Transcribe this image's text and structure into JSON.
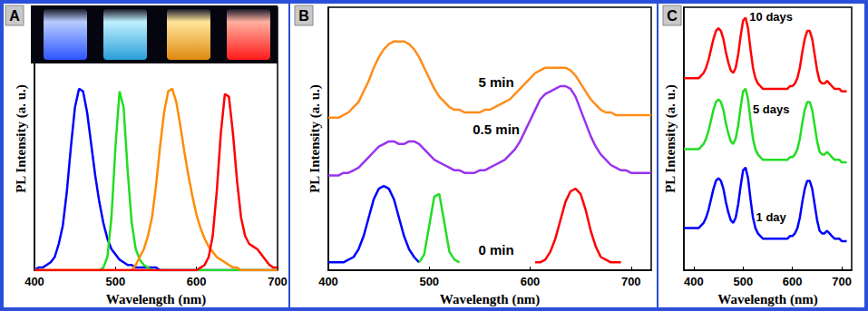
{
  "chart_data": [
    {
      "type": "line",
      "title": "A",
      "x_label": "Wavelength (nm)",
      "y_label": "PL Intensity (a. u.)",
      "x": [
        400,
        405,
        410,
        415,
        420,
        425,
        430,
        435,
        440,
        445,
        450,
        455,
        460,
        465,
        470,
        475,
        480,
        485,
        490,
        495,
        500,
        505,
        510,
        515,
        520,
        525,
        530,
        535,
        540,
        545,
        550,
        555,
        560,
        565,
        570,
        575,
        580,
        585,
        590,
        595,
        600,
        605,
        610,
        615,
        620,
        625,
        630,
        635,
        640,
        645,
        650,
        655,
        660,
        665,
        670,
        675,
        680,
        685,
        690,
        695,
        700
      ],
      "series": [
        {
          "color": "#0000ff",
          "values": [
            0,
            0.01,
            0.01,
            0.02,
            0.03,
            0.05,
            0.1,
            0.17,
            0.3,
            0.47,
            0.62,
            0.69,
            0.68,
            0.6,
            0.48,
            0.36,
            0.26,
            0.18,
            0.12,
            0.08,
            0.06,
            0.04,
            0.03,
            0.02,
            0.02,
            0.01,
            0.01,
            0.01,
            0.01,
            0.01,
            0.01,
            0,
            0,
            0,
            0,
            0,
            0,
            0,
            0,
            0,
            0,
            0,
            0,
            0,
            0,
            0,
            0,
            0,
            0,
            0,
            0,
            0,
            0,
            0,
            0,
            0,
            0,
            0,
            0,
            0,
            0
          ]
        },
        {
          "color": "#22dd22",
          "values": [
            0,
            0,
            0,
            0,
            0,
            0,
            0,
            0,
            0,
            0,
            0,
            0,
            0,
            0,
            0,
            0,
            0,
            0.01,
            0.05,
            0.2,
            0.47,
            0.68,
            0.62,
            0.38,
            0.18,
            0.08,
            0.04,
            0.02,
            0.01,
            0,
            0,
            0,
            0,
            0,
            0,
            0,
            0,
            0,
            0,
            0,
            0,
            0,
            0,
            0,
            0,
            0,
            0,
            0,
            0,
            0,
            0,
            0,
            0,
            0,
            0,
            0,
            0,
            0,
            0,
            0,
            0
          ]
        },
        {
          "color": "#ff8c00",
          "values": [
            0,
            0,
            0,
            0,
            0,
            0,
            0,
            0,
            0,
            0,
            0,
            0,
            0,
            0,
            0,
            0,
            0,
            0,
            0,
            0,
            0,
            0,
            0,
            0,
            0,
            0.02,
            0.05,
            0.08,
            0.13,
            0.2,
            0.32,
            0.47,
            0.6,
            0.68,
            0.69,
            0.64,
            0.55,
            0.45,
            0.36,
            0.28,
            0.21,
            0.16,
            0.12,
            0.09,
            0.07,
            0.05,
            0.04,
            0.03,
            0.02,
            0.01,
            0.01,
            0,
            0,
            0,
            0,
            0,
            0,
            0,
            0,
            0,
            0
          ]
        },
        {
          "color": "#ff0000",
          "values": [
            0,
            0,
            0,
            0,
            0,
            0,
            0,
            0,
            0,
            0,
            0,
            0,
            0,
            0,
            0,
            0,
            0,
            0,
            0,
            0,
            0,
            0,
            0,
            0,
            0,
            0,
            0,
            0,
            0,
            0,
            0,
            0,
            0,
            0,
            0,
            0,
            0,
            0,
            0,
            0,
            0,
            0.01,
            0.02,
            0.05,
            0.13,
            0.3,
            0.52,
            0.67,
            0.66,
            0.52,
            0.34,
            0.2,
            0.13,
            0.1,
            0.09,
            0.08,
            0.06,
            0.04,
            0.02,
            0.01,
            0.01
          ]
        }
      ],
      "xlim": [
        400,
        700
      ],
      "xticks": [
        400,
        500,
        600,
        700
      ],
      "ylim": [
        0,
        1
      ],
      "tick_labels": "x",
      "grid": false
    },
    {
      "type": "line",
      "title": "B",
      "x_label": "Wavelength (nm)",
      "y_label": "PL Intensity (a. u.)",
      "x": [
        400,
        405,
        410,
        415,
        420,
        425,
        430,
        435,
        440,
        445,
        450,
        455,
        460,
        465,
        470,
        475,
        480,
        485,
        490,
        495,
        500,
        505,
        510,
        515,
        520,
        525,
        530,
        535,
        540,
        545,
        550,
        555,
        560,
        565,
        570,
        575,
        580,
        585,
        590,
        595,
        600,
        605,
        610,
        615,
        620,
        625,
        630,
        635,
        640,
        645,
        650,
        655,
        660,
        665,
        670,
        675,
        680,
        685,
        690,
        695,
        700,
        705,
        710,
        715,
        720
      ],
      "series": [
        {
          "name": "5 min",
          "color": "#ff8c1a",
          "values": [
            0.58,
            0.58,
            0.58,
            0.59,
            0.6,
            0.62,
            0.64,
            0.68,
            0.72,
            0.77,
            0.81,
            0.84,
            0.86,
            0.87,
            0.87,
            0.87,
            0.86,
            0.84,
            0.81,
            0.77,
            0.73,
            0.69,
            0.66,
            0.64,
            0.62,
            0.61,
            0.61,
            0.6,
            0.6,
            0.6,
            0.6,
            0.61,
            0.61,
            0.62,
            0.63,
            0.64,
            0.65,
            0.67,
            0.69,
            0.71,
            0.73,
            0.75,
            0.76,
            0.77,
            0.77,
            0.77,
            0.77,
            0.77,
            0.76,
            0.74,
            0.71,
            0.68,
            0.65,
            0.63,
            0.61,
            0.6,
            0.6,
            0.59,
            0.59,
            0.59,
            0.59,
            0.59,
            0.59,
            0.59,
            0.59
          ]
        },
        {
          "name": "0.5 min",
          "color": "#9933ee",
          "values": [
            0.36,
            0.36,
            0.36,
            0.37,
            0.37,
            0.38,
            0.39,
            0.41,
            0.43,
            0.45,
            0.47,
            0.48,
            0.49,
            0.49,
            0.48,
            0.48,
            0.49,
            0.49,
            0.48,
            0.46,
            0.44,
            0.42,
            0.41,
            0.4,
            0.39,
            0.38,
            0.38,
            0.37,
            0.37,
            0.37,
            0.38,
            0.38,
            0.39,
            0.4,
            0.41,
            0.42,
            0.44,
            0.46,
            0.49,
            0.53,
            0.57,
            0.61,
            0.65,
            0.67,
            0.68,
            0.69,
            0.7,
            0.7,
            0.69,
            0.66,
            0.61,
            0.56,
            0.51,
            0.47,
            0.44,
            0.42,
            0.4,
            0.39,
            0.38,
            0.38,
            0.37,
            0.37,
            0.37,
            0.37,
            0.37
          ]
        },
        {
          "name": "0 min",
          "color": "#0000ff",
          "values": [
            0.03,
            0.03,
            0.03,
            0.03,
            0.04,
            0.05,
            0.08,
            0.13,
            0.2,
            0.27,
            0.31,
            0.32,
            0.31,
            0.27,
            0.2,
            0.13,
            0.08,
            0.05,
            0.03,
            null,
            null,
            null,
            null,
            null,
            null,
            null,
            null,
            null,
            null,
            null,
            null,
            null,
            null,
            null,
            null,
            null,
            null,
            null,
            null,
            null,
            null,
            null,
            null,
            null,
            null,
            null,
            null,
            null,
            null,
            null,
            null,
            null,
            null,
            null,
            null,
            null,
            null,
            null,
            null,
            null,
            null,
            null,
            null,
            null,
            null
          ]
        },
        {
          "color": "#22dd22",
          "values": [
            null,
            null,
            null,
            null,
            null,
            null,
            null,
            null,
            null,
            null,
            null,
            null,
            null,
            null,
            null,
            null,
            null,
            null,
            0.03,
            0.06,
            0.17,
            0.28,
            0.29,
            0.18,
            0.07,
            0.04,
            0.03,
            null,
            null,
            null,
            null,
            null,
            null,
            null,
            null,
            null,
            null,
            null,
            null,
            null,
            null,
            null,
            null,
            null,
            null,
            null,
            null,
            null,
            null,
            null,
            null,
            null,
            null,
            null,
            null,
            null,
            null,
            null,
            null,
            null,
            null,
            null,
            null,
            null,
            null
          ]
        },
        {
          "color": "#ff0000",
          "values": [
            null,
            null,
            null,
            null,
            null,
            null,
            null,
            null,
            null,
            null,
            null,
            null,
            null,
            null,
            null,
            null,
            null,
            null,
            null,
            null,
            null,
            null,
            null,
            null,
            null,
            null,
            null,
            null,
            null,
            null,
            null,
            null,
            null,
            null,
            null,
            null,
            null,
            null,
            null,
            null,
            null,
            0.03,
            0.03,
            0.04,
            0.07,
            0.12,
            0.19,
            0.26,
            0.3,
            0.31,
            0.29,
            0.23,
            0.15,
            0.09,
            0.05,
            0.04,
            0.03,
            0.03,
            0.03,
            null,
            null,
            null,
            null,
            null,
            null
          ]
        }
      ],
      "xlim": [
        400,
        720
      ],
      "xticks": [
        400,
        500,
        600,
        700
      ],
      "ylim": [
        0,
        1
      ],
      "tick_labels": "x",
      "grid": false
    },
    {
      "type": "line",
      "title": "C",
      "x_label": "Wavelength (nm)",
      "y_label": "PL Intensity (a. u.)",
      "x": [
        380,
        385,
        390,
        395,
        400,
        405,
        410,
        415,
        420,
        425,
        430,
        435,
        440,
        445,
        450,
        455,
        460,
        465,
        470,
        475,
        480,
        485,
        490,
        495,
        500,
        505,
        510,
        515,
        520,
        525,
        530,
        535,
        540,
        545,
        550,
        555,
        560,
        565,
        570,
        575,
        580,
        585,
        590,
        595,
        600,
        605,
        610,
        615,
        620,
        625,
        630,
        635,
        640,
        645,
        650,
        655,
        660,
        665,
        670,
        675,
        680,
        685,
        690,
        695,
        700,
        705,
        710
      ],
      "series": [
        {
          "name": "10 days",
          "color": "#ff0000",
          "values": [
            0.73,
            0.73,
            0.73,
            0.73,
            0.73,
            0.73,
            0.73,
            0.74,
            0.75,
            0.77,
            0.8,
            0.84,
            0.88,
            0.91,
            0.92,
            0.91,
            0.88,
            0.83,
            0.79,
            0.76,
            0.75,
            0.77,
            0.82,
            0.89,
            0.95,
            0.96,
            0.92,
            0.84,
            0.77,
            0.73,
            0.71,
            0.7,
            0.69,
            0.69,
            0.69,
            0.69,
            0.69,
            0.69,
            0.69,
            0.69,
            0.69,
            0.69,
            0.69,
            0.7,
            0.7,
            0.71,
            0.73,
            0.77,
            0.83,
            0.88,
            0.91,
            0.91,
            0.88,
            0.82,
            0.76,
            0.72,
            0.71,
            0.71,
            0.72,
            0.71,
            0.7,
            0.69,
            0.69,
            0.69,
            0.68,
            0.68,
            0.68
          ]
        },
        {
          "name": "5 days",
          "color": "#22dd22",
          "values": [
            0.46,
            0.46,
            0.46,
            0.46,
            0.46,
            0.46,
            0.46,
            0.47,
            0.48,
            0.5,
            0.53,
            0.57,
            0.61,
            0.64,
            0.65,
            0.64,
            0.61,
            0.56,
            0.52,
            0.49,
            0.48,
            0.5,
            0.55,
            0.62,
            0.68,
            0.69,
            0.65,
            0.57,
            0.5,
            0.46,
            0.44,
            0.43,
            0.42,
            0.42,
            0.42,
            0.42,
            0.42,
            0.42,
            0.42,
            0.42,
            0.42,
            0.42,
            0.42,
            0.43,
            0.43,
            0.44,
            0.46,
            0.5,
            0.56,
            0.61,
            0.64,
            0.64,
            0.61,
            0.55,
            0.49,
            0.45,
            0.44,
            0.44,
            0.45,
            0.44,
            0.43,
            0.42,
            0.42,
            0.42,
            0.41,
            0.41,
            0.41
          ]
        },
        {
          "name": "1 day",
          "color": "#0000ff",
          "values": [
            0.16,
            0.16,
            0.16,
            0.16,
            0.16,
            0.16,
            0.16,
            0.17,
            0.18,
            0.2,
            0.23,
            0.27,
            0.31,
            0.34,
            0.35,
            0.34,
            0.31,
            0.26,
            0.22,
            0.19,
            0.18,
            0.2,
            0.25,
            0.32,
            0.38,
            0.39,
            0.35,
            0.27,
            0.2,
            0.16,
            0.14,
            0.13,
            0.12,
            0.12,
            0.12,
            0.12,
            0.12,
            0.12,
            0.12,
            0.12,
            0.12,
            0.12,
            0.12,
            0.13,
            0.13,
            0.14,
            0.16,
            0.2,
            0.26,
            0.31,
            0.34,
            0.34,
            0.31,
            0.25,
            0.19,
            0.15,
            0.14,
            0.14,
            0.15,
            0.14,
            0.13,
            0.12,
            0.12,
            0.12,
            0.11,
            0.11,
            0.11
          ]
        }
      ],
      "xlim": [
        380,
        720
      ],
      "xticks": [
        400,
        500,
        600,
        700
      ],
      "ylim": [
        0,
        1
      ],
      "tick_labels": "x",
      "grid": false
    }
  ]
}
